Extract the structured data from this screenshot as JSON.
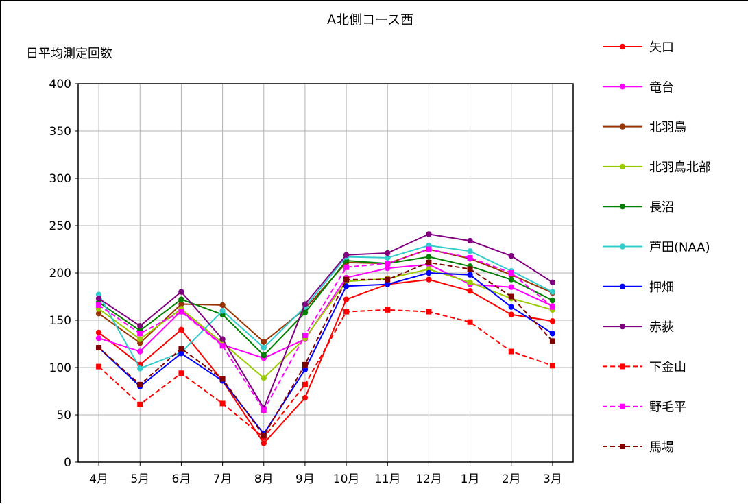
{
  "chart_data": {
    "type": "line",
    "title": "A北側コース西",
    "ylabel": "日平均測定回数",
    "xlabel": "",
    "ylim": [
      0,
      400
    ],
    "yticks": [
      0,
      50,
      100,
      150,
      200,
      250,
      300,
      350,
      400
    ],
    "grid": true,
    "legend_position": "right",
    "categories": [
      "4月",
      "5月",
      "6月",
      "7月",
      "8月",
      "9月",
      "10月",
      "11月",
      "12月",
      "1月",
      "2月",
      "3月"
    ],
    "series": [
      {
        "name": "矢口",
        "color": "#ff0000",
        "dashed": false,
        "marker": "circle",
        "values": [
          137,
          103,
          140,
          86,
          20,
          68,
          172,
          188,
          193,
          181,
          156,
          149
        ]
      },
      {
        "name": "竜台",
        "color": "#ff00ff",
        "dashed": false,
        "marker": "circle",
        "values": [
          131,
          117,
          160,
          124,
          110,
          130,
          195,
          205,
          209,
          188,
          185,
          165
        ]
      },
      {
        "name": "北羽鳥",
        "color": "#993300",
        "dashed": false,
        "marker": "circle",
        "values": [
          157,
          126,
          167,
          166,
          127,
          162,
          211,
          210,
          225,
          215,
          198,
          179
        ]
      },
      {
        "name": "北羽鳥北部",
        "color": "#99cc00",
        "dashed": false,
        "marker": "circle",
        "values": [
          162,
          130,
          162,
          126,
          89,
          131,
          191,
          194,
          204,
          190,
          173,
          161
        ]
      },
      {
        "name": "長沼",
        "color": "#008000",
        "dashed": false,
        "marker": "circle",
        "values": [
          169,
          139,
          172,
          156,
          113,
          158,
          213,
          210,
          217,
          207,
          193,
          171
        ]
      },
      {
        "name": "芦田(NAA)",
        "color": "#33cccc",
        "dashed": false,
        "marker": "circle",
        "values": [
          177,
          99,
          116,
          160,
          121,
          164,
          217,
          216,
          229,
          223,
          202,
          180
        ]
      },
      {
        "name": "押畑",
        "color": "#0000ff",
        "dashed": false,
        "marker": "circle",
        "values": [
          121,
          80,
          115,
          86,
          30,
          98,
          186,
          188,
          200,
          198,
          164,
          136
        ]
      },
      {
        "name": "赤荻",
        "color": "#800080",
        "dashed": false,
        "marker": "circle",
        "values": [
          173,
          144,
          180,
          130,
          57,
          167,
          219,
          221,
          241,
          234,
          218,
          190
        ]
      },
      {
        "name": "下金山",
        "color": "#ff0000",
        "dashed": true,
        "marker": "square",
        "values": [
          101,
          61,
          94,
          62,
          26,
          82,
          159,
          161,
          159,
          148,
          117,
          102
        ]
      },
      {
        "name": "野毛平",
        "color": "#ff00ff",
        "dashed": true,
        "marker": "square",
        "values": [
          166,
          136,
          159,
          123,
          55,
          134,
          206,
          210,
          225,
          216,
          200,
          164
        ]
      },
      {
        "name": "馬場",
        "color": "#800000",
        "dashed": true,
        "marker": "square",
        "values": [
          121,
          82,
          120,
          88,
          28,
          103,
          193,
          193,
          211,
          204,
          175,
          128
        ]
      }
    ]
  }
}
